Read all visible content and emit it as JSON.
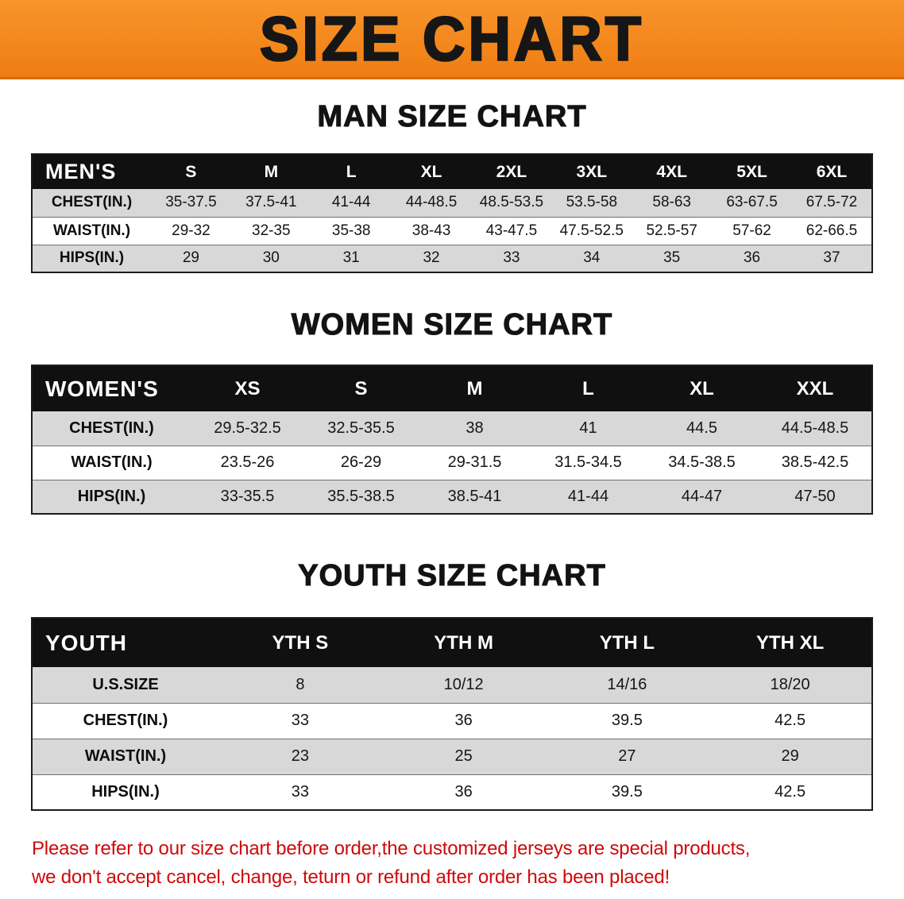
{
  "banner": {
    "title": "SIZE CHART",
    "bg_color": "#f6861f",
    "text_color": "#161616"
  },
  "colors": {
    "table_header_bg": "#101010",
    "table_header_text": "#ffffff",
    "shaded_row_bg": "#d8d8d8",
    "notice_text": "#cf0a0a"
  },
  "sections": [
    {
      "heading": "MAN SIZE CHART",
      "table": {
        "name": "mens",
        "corner_label": "MEN'S",
        "columns": [
          "S",
          "M",
          "L",
          "XL",
          "2XL",
          "3XL",
          "4XL",
          "5XL",
          "6XL"
        ],
        "rows": [
          {
            "label": "CHEST(IN.)",
            "values": [
              "35-37.5",
              "37.5-41",
              "41-44",
              "44-48.5",
              "48.5-53.5",
              "53.5-58",
              "58-63",
              "63-67.5",
              "67.5-72"
            ]
          },
          {
            "label": "WAIST(IN.)",
            "values": [
              "29-32",
              "32-35",
              "35-38",
              "38-43",
              "43-47.5",
              "47.5-52.5",
              "52.5-57",
              "57-62",
              "62-66.5"
            ]
          },
          {
            "label": "HIPS(IN.)",
            "values": [
              "29",
              "30",
              "31",
              "32",
              "33",
              "34",
              "35",
              "36",
              "37"
            ]
          }
        ]
      }
    },
    {
      "heading": "WOMEN SIZE CHART",
      "table": {
        "name": "womens",
        "corner_label": "WOMEN'S",
        "columns": [
          "XS",
          "S",
          "M",
          "L",
          "XL",
          "XXL"
        ],
        "rows": [
          {
            "label": "CHEST(IN.)",
            "values": [
              "29.5-32.5",
              "32.5-35.5",
              "38",
              "41",
              "44.5",
              "44.5-48.5"
            ]
          },
          {
            "label": "WAIST(IN.)",
            "values": [
              "23.5-26",
              "26-29",
              "29-31.5",
              "31.5-34.5",
              "34.5-38.5",
              "38.5-42.5"
            ]
          },
          {
            "label": "HIPS(IN.)",
            "values": [
              "33-35.5",
              "35.5-38.5",
              "38.5-41",
              "41-44",
              "44-47",
              "47-50"
            ]
          }
        ]
      }
    },
    {
      "heading": "YOUTH SIZE CHART",
      "table": {
        "name": "youth",
        "corner_label": "YOUTH",
        "columns": [
          "YTH S",
          "YTH M",
          "YTH L",
          "YTH XL"
        ],
        "rows": [
          {
            "label": "U.S.SIZE",
            "values": [
              "8",
              "10/12",
              "14/16",
              "18/20"
            ]
          },
          {
            "label": "CHEST(IN.)",
            "values": [
              "33",
              "36",
              "39.5",
              "42.5"
            ]
          },
          {
            "label": "WAIST(IN.)",
            "values": [
              "23",
              "25",
              "27",
              "29"
            ]
          },
          {
            "label": "HIPS(IN.)",
            "values": [
              "33",
              "36",
              "39.5",
              "42.5"
            ]
          }
        ]
      }
    }
  ],
  "footer": {
    "lines": [
      "Please refer to our size chart before order,the customized jerseys are special products,",
      "we don't accept cancel, change, teturn or refund after order has been placed!"
    ]
  }
}
